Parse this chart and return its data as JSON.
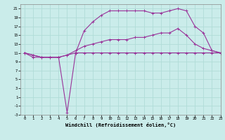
{
  "title": "",
  "xlabel": "Windchill (Refroidissement éolien,°C)",
  "bg_color": "#caecea",
  "line_color": "#993399",
  "grid_color": "#b0dcd8",
  "x_values": [
    0,
    1,
    2,
    3,
    4,
    5,
    6,
    7,
    8,
    9,
    10,
    11,
    12,
    13,
    14,
    15,
    16,
    17,
    18,
    19,
    20,
    21,
    22,
    23
  ],
  "line1_y": [
    11.0,
    10.0,
    10.0,
    10.0,
    10.0,
    10.5,
    11.0,
    11.0,
    11.0,
    11.0,
    11.0,
    11.0,
    11.0,
    11.0,
    11.0,
    11.0,
    11.0,
    11.0,
    11.0,
    11.0,
    11.0,
    11.0,
    11.0,
    11.0
  ],
  "line2_y": [
    11.0,
    10.5,
    10.0,
    10.0,
    10.0,
    10.5,
    11.5,
    12.5,
    13.0,
    13.5,
    14.0,
    14.0,
    14.0,
    14.5,
    14.5,
    15.0,
    15.5,
    15.5,
    16.5,
    15.0,
    13.0,
    12.0,
    11.5,
    11.0
  ],
  "line3_y": [
    11.0,
    10.5,
    10.0,
    10.0,
    10.0,
    -2.5,
    11.0,
    16.0,
    18.0,
    19.5,
    20.5,
    20.5,
    20.5,
    20.5,
    20.5,
    20.0,
    20.0,
    20.5,
    21.0,
    20.5,
    17.0,
    15.5,
    11.5,
    11.0
  ],
  "ylim": [
    -3,
    22
  ],
  "xlim": [
    -0.5,
    23
  ],
  "yticks": [
    -3,
    -1,
    1,
    3,
    5,
    7,
    9,
    11,
    13,
    15,
    17,
    19,
    21
  ],
  "xticks": [
    0,
    1,
    2,
    3,
    4,
    5,
    6,
    7,
    8,
    9,
    10,
    11,
    12,
    13,
    14,
    15,
    16,
    17,
    18,
    19,
    20,
    21,
    22,
    23
  ]
}
